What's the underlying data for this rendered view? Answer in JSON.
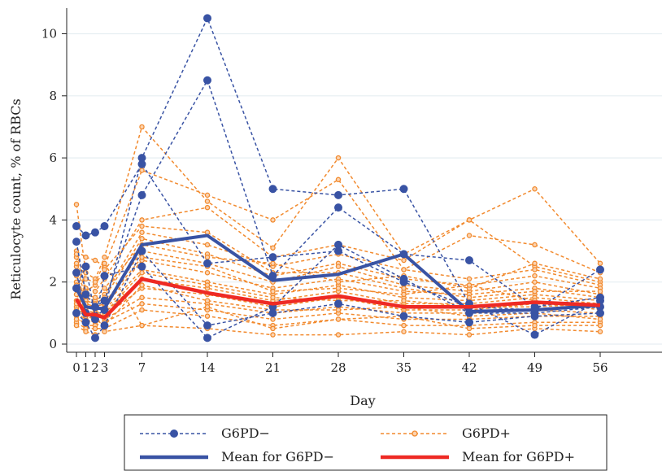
{
  "chart_data": {
    "type": "line",
    "xlabel": "Day",
    "ylabel": "Reticulocyte count, % of RBCs",
    "x_ticks": [
      0,
      1,
      2,
      3,
      7,
      14,
      21,
      28,
      35,
      42,
      49,
      56
    ],
    "y_ticks": [
      0,
      2,
      4,
      6,
      8,
      10
    ],
    "xlim": [
      -1,
      56.5
    ],
    "ylim": [
      -0.2,
      10.8
    ],
    "grid": "horizontal",
    "legend_position": "bottom",
    "legend": [
      {
        "label": "G6PD−",
        "style": "dashed-marker",
        "color": "#3953a4"
      },
      {
        "label": "G6PD+",
        "style": "dashed-marker",
        "color": "#f28a2e"
      },
      {
        "label": "Mean for G6PD−",
        "style": "solid",
        "color": "#3953a4"
      },
      {
        "label": "Mean for G6PD+",
        "style": "solid",
        "color": "#ee2a24"
      }
    ],
    "colors": {
      "g6pd_neg": "#3953a4",
      "g6pd_pos": "#f28a2e",
      "mean_neg": "#3953a4",
      "mean_pos": "#ee2a24"
    },
    "series": [
      {
        "name": "Mean for G6PD−",
        "x": [
          0,
          1,
          2,
          3,
          7,
          14,
          21,
          28,
          35,
          42,
          49,
          56
        ],
        "y": [
          1.8,
          1.2,
          1.15,
          1.15,
          3.2,
          3.5,
          2.05,
          2.25,
          2.9,
          1.05,
          1.1,
          1.25
        ]
      },
      {
        "name": "Mean for G6PD+",
        "x": [
          0,
          1,
          2,
          3,
          7,
          14,
          21,
          28,
          35,
          42,
          49,
          56
        ],
        "y": [
          1.45,
          0.95,
          0.95,
          0.85,
          2.1,
          1.65,
          1.3,
          1.55,
          1.2,
          1.2,
          1.35,
          1.25
        ]
      }
    ],
    "individual_g6pd_neg": [
      [
        3.8,
        3.5,
        3.6,
        3.8,
        5.8,
        2.6,
        2.8,
        3.0,
        2.0,
        1.2,
        1.1,
        2.4
      ],
      [
        1.8,
        2.5,
        0.9,
        1.1,
        6.0,
        10.5,
        5.0,
        4.8,
        5.0,
        1.3,
        0.3,
        1.4
      ],
      [
        3.3,
        1.6,
        1.2,
        1.4,
        4.8,
        8.5,
        2.2,
        4.4,
        2.9,
        2.7,
        1.2,
        1.5
      ],
      [
        2.3,
        1.0,
        0.8,
        2.2,
        2.5,
        0.2,
        1.2,
        3.2,
        2.1,
        1.0,
        1.0,
        1.2
      ],
      [
        1.0,
        0.7,
        0.2,
        0.6,
        3.0,
        0.6,
        1.0,
        1.3,
        0.9,
        0.7,
        0.9,
        1.0
      ]
    ],
    "individual_g6pd_pos": [
      [
        4.5,
        2.3,
        2.1,
        2.8,
        7.0,
        4.6,
        3.1,
        6.0,
        2.9,
        4.0,
        5.0,
        2.6
      ],
      [
        3.0,
        2.8,
        2.7,
        2.5,
        5.6,
        4.8,
        4.0,
        5.3,
        2.4,
        3.5,
        3.2,
        2.3
      ],
      [
        2.8,
        1.8,
        1.7,
        2.1,
        4.0,
        4.4,
        2.8,
        3.2,
        2.7,
        4.0,
        2.5,
        2.0
      ],
      [
        2.5,
        1.5,
        1.4,
        1.6,
        3.6,
        3.2,
        2.5,
        2.9,
        2.4,
        2.1,
        2.4,
        1.9
      ],
      [
        2.2,
        1.4,
        1.3,
        1.5,
        3.4,
        2.9,
        2.2,
        2.6,
        2.1,
        1.9,
        2.2,
        1.8
      ],
      [
        2.0,
        1.3,
        1.2,
        1.3,
        3.0,
        2.6,
        2.0,
        2.5,
        1.9,
        1.7,
        2.0,
        1.6
      ],
      [
        1.8,
        1.2,
        1.1,
        1.2,
        2.7,
        2.3,
        1.8,
        2.1,
        1.7,
        1.6,
        1.8,
        1.5
      ],
      [
        1.6,
        1.1,
        1.0,
        1.1,
        2.4,
        2.0,
        1.6,
        1.9,
        1.5,
        1.4,
        1.6,
        1.4
      ],
      [
        1.4,
        1.0,
        0.9,
        1.0,
        2.1,
        1.8,
        1.4,
        1.7,
        1.3,
        1.3,
        1.5,
        1.3
      ],
      [
        1.2,
        0.9,
        0.8,
        0.9,
        1.8,
        1.6,
        1.2,
        1.5,
        1.1,
        1.1,
        1.3,
        1.2
      ],
      [
        1.0,
        0.8,
        0.7,
        0.8,
        1.5,
        1.3,
        1.0,
        1.2,
        1.0,
        1.0,
        1.1,
        1.0
      ],
      [
        0.9,
        0.6,
        0.6,
        0.7,
        1.3,
        1.1,
        0.8,
        1.0,
        0.8,
        0.8,
        0.9,
        0.9
      ],
      [
        0.7,
        0.5,
        0.5,
        0.5,
        1.1,
        0.9,
        0.6,
        0.8,
        0.6,
        0.6,
        0.7,
        0.7
      ],
      [
        0.6,
        0.4,
        0.3,
        0.4,
        0.6,
        0.5,
        0.3,
        0.3,
        0.4,
        0.3,
        0.5,
        0.4
      ],
      [
        2.6,
        1.7,
        1.9,
        2.4,
        3.8,
        3.6,
        2.3,
        2.3,
        1.8,
        1.5,
        1.7,
        1.7
      ],
      [
        1.9,
        1.6,
        1.5,
        1.8,
        3.2,
        2.8,
        2.6,
        2.0,
        2.2,
        1.8,
        2.6,
        2.1
      ],
      [
        1.3,
        1.3,
        1.2,
        1.3,
        2.8,
        2.5,
        1.7,
        1.8,
        1.6,
        1.9,
        1.4,
        1.1
      ],
      [
        1.1,
        0.9,
        1.0,
        1.0,
        2.3,
        1.9,
        1.5,
        1.4,
        1.4,
        1.2,
        1.2,
        1.3
      ],
      [
        0.8,
        0.7,
        0.8,
        0.6,
        1.9,
        1.4,
        1.1,
        1.1,
        1.2,
        0.9,
        1.0,
        0.8
      ],
      [
        2.9,
        2.1,
        2.0,
        2.6,
        0.6,
        1.2,
        0.5,
        0.8,
        0.9,
        0.5,
        0.6,
        0.6
      ]
    ]
  }
}
